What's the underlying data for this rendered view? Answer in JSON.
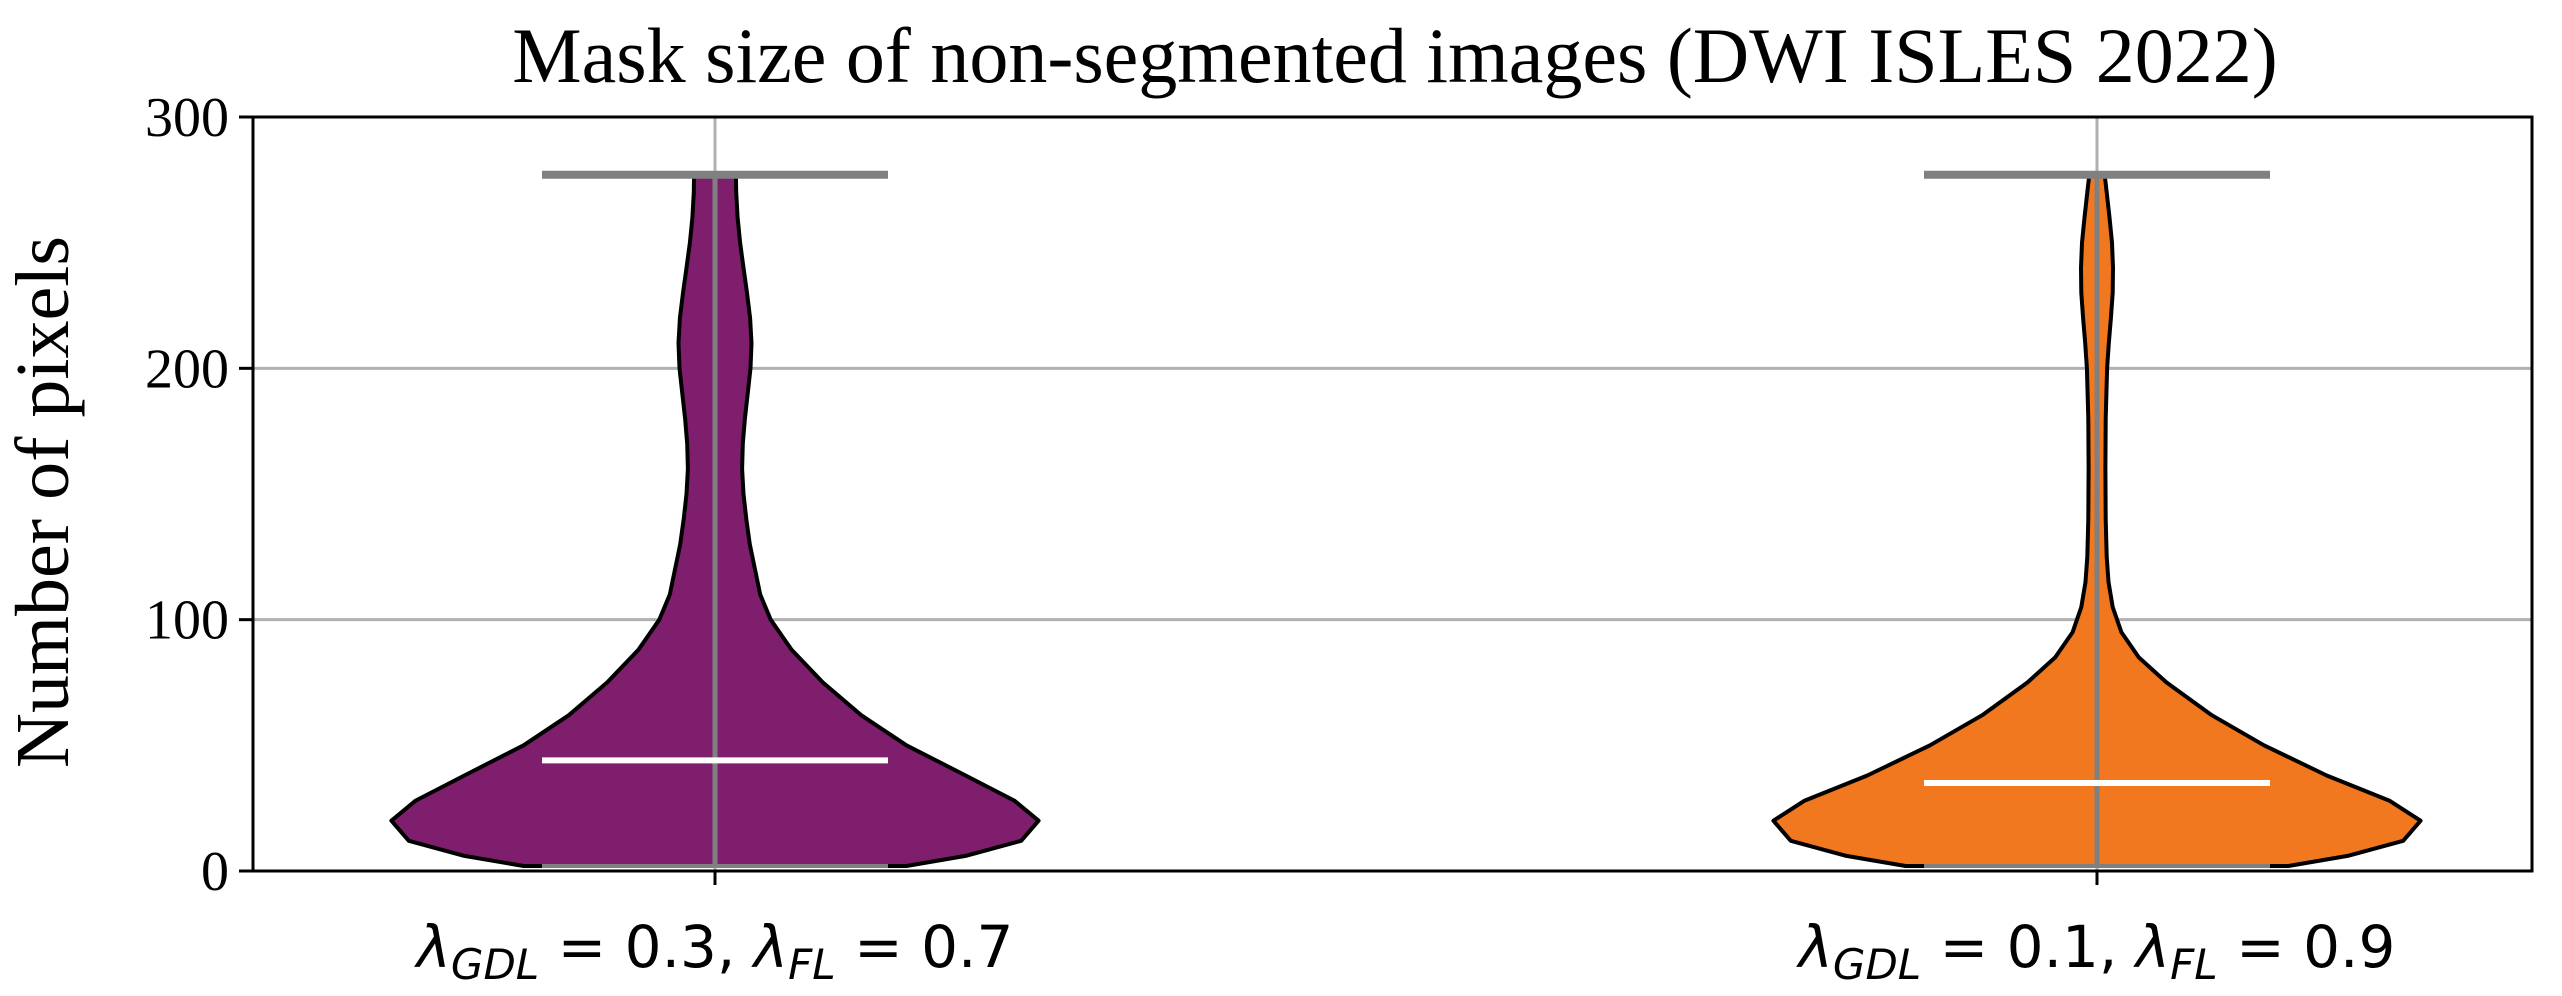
{
  "chart_data": {
    "type": "violin",
    "title": "Mask size of non-segmented images (DWI ISLES 2022)",
    "xlabel": "",
    "ylabel": "Number of pixels",
    "ylim": [
      0,
      300
    ],
    "yticks": [
      0,
      100,
      200,
      300
    ],
    "yticklabels": [
      "0",
      "100",
      "200",
      "300"
    ],
    "grid": true,
    "categories": [
      {
        "sym": "λ",
        "sub1": "GDL",
        "val1": "0.3",
        "sub2": "FL",
        "val2": "0.7"
      },
      {
        "sym": "λ",
        "sub1": "GDL",
        "val1": "0.1",
        "sub2": "FL",
        "val2": "0.9"
      }
    ],
    "series": [
      {
        "color": "#7e1e6c",
        "min": 2,
        "max": 277,
        "median": 44,
        "density": [
          [
            2,
            0.55
          ],
          [
            6,
            0.72
          ],
          [
            12,
            0.88
          ],
          [
            20,
            0.93
          ],
          [
            28,
            0.86
          ],
          [
            38,
            0.72
          ],
          [
            50,
            0.55
          ],
          [
            62,
            0.42
          ],
          [
            75,
            0.31
          ],
          [
            88,
            0.22
          ],
          [
            100,
            0.16
          ],
          [
            110,
            0.13
          ],
          [
            120,
            0.115
          ],
          [
            130,
            0.1
          ],
          [
            140,
            0.09
          ],
          [
            150,
            0.082
          ],
          [
            160,
            0.078
          ],
          [
            170,
            0.08
          ],
          [
            180,
            0.086
          ],
          [
            190,
            0.094
          ],
          [
            200,
            0.102
          ],
          [
            210,
            0.105
          ],
          [
            220,
            0.101
          ],
          [
            230,
            0.092
          ],
          [
            240,
            0.082
          ],
          [
            250,
            0.072
          ],
          [
            260,
            0.065
          ],
          [
            270,
            0.061
          ],
          [
            277,
            0.06
          ]
        ]
      },
      {
        "color": "#f27820",
        "min": 2,
        "max": 277,
        "median": 35,
        "density": [
          [
            2,
            0.55
          ],
          [
            6,
            0.72
          ],
          [
            12,
            0.88
          ],
          [
            20,
            0.93
          ],
          [
            28,
            0.84
          ],
          [
            38,
            0.66
          ],
          [
            50,
            0.48
          ],
          [
            62,
            0.33
          ],
          [
            75,
            0.2
          ],
          [
            85,
            0.12
          ],
          [
            95,
            0.07
          ],
          [
            105,
            0.045
          ],
          [
            115,
            0.033
          ],
          [
            125,
            0.028
          ],
          [
            140,
            0.025
          ],
          [
            160,
            0.024
          ],
          [
            180,
            0.025
          ],
          [
            200,
            0.029
          ],
          [
            210,
            0.034
          ],
          [
            220,
            0.04
          ],
          [
            230,
            0.045
          ],
          [
            240,
            0.046
          ],
          [
            250,
            0.043
          ],
          [
            260,
            0.036
          ],
          [
            270,
            0.028
          ],
          [
            277,
            0.022
          ]
        ]
      }
    ]
  }
}
